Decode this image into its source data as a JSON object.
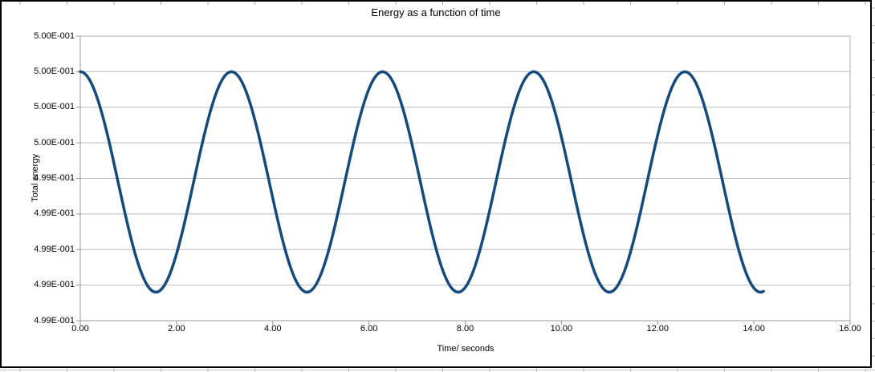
{
  "chart_data": {
    "type": "line",
    "title": "Energy as a function of time",
    "xlabel": "Time/ seconds",
    "ylabel": "Total energy",
    "x_range": [
      0,
      16
    ],
    "y_range": [
      0.499,
      0.5
    ],
    "grid": "horizontal-only",
    "legend": "none",
    "x_ticks": {
      "values": [
        0,
        2,
        4,
        6,
        8,
        10,
        12,
        14,
        16
      ],
      "labels": [
        "0.00",
        "2.00",
        "4.00",
        "6.00",
        "8.00",
        "10.00",
        "12.00",
        "14.00",
        "16.00"
      ]
    },
    "y_ticks": {
      "values": [
        0.5,
        0.499875,
        0.49975,
        0.499625,
        0.4995,
        0.499375,
        0.49925,
        0.499125,
        0.499
      ],
      "labels": [
        "5.00E-001",
        "5.00E-001",
        "5.00E-001",
        "5.00E-001",
        "4.99E-001",
        "4.99E-001",
        "4.99E-001",
        "4.99E-001",
        "4.99E-001"
      ]
    },
    "series": [
      {
        "name": "Total energy",
        "color": "#134b80",
        "line_width": 3.5,
        "model": {
          "form": "E(t) = mean + amplitude * cos(omega * t)",
          "mean": 0.4994875,
          "amplitude": 0.0003875,
          "omega": 2.0,
          "t_start": 0.0,
          "t_end": 14.2,
          "sample_step": 0.05
        },
        "peaks": {
          "t": [
            0.0,
            3.14,
            6.28,
            9.42,
            12.57
          ],
          "value": 0.499875
        },
        "troughs": {
          "t": [
            1.57,
            4.71,
            7.85,
            11.0,
            14.14
          ],
          "value": 0.4991
        },
        "period_seconds": 3.1416
      }
    ],
    "colors": {
      "background": "#ffffff",
      "text": "#000000",
      "chart_border": "#000000",
      "plot_border": "#b3b3b3",
      "gridline": "#bcbcbc",
      "axis": "#999999",
      "sheet_grid": "#aaaaaa"
    }
  }
}
